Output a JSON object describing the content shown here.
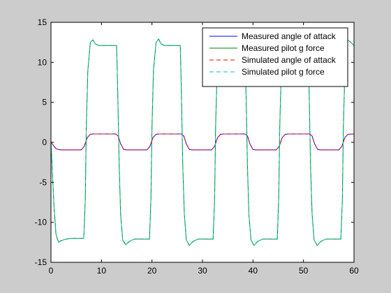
{
  "chart_data": {
    "type": "line",
    "title": "",
    "xlabel": "",
    "ylabel": "",
    "xlim": [
      0,
      60
    ],
    "ylim": [
      -15,
      15
    ],
    "xticks": [
      0,
      10,
      20,
      30,
      40,
      50,
      60
    ],
    "yticks": [
      -15,
      -10,
      -5,
      0,
      5,
      10,
      15
    ],
    "xtick_labels": [
      "0",
      "10",
      "20",
      "30",
      "40",
      "50",
      "60"
    ],
    "ytick_labels": [
      "-15",
      "-10",
      "-5",
      "0",
      "5",
      "10",
      "15"
    ],
    "grid": false,
    "legend_position": "top-right",
    "series": [
      {
        "name": "Measured angle of attack",
        "color": "#0000ff",
        "dash": "solid",
        "x": [
          0,
          0.5,
          1,
          1.5,
          2,
          6,
          6.6,
          7.2,
          7.8,
          8.3,
          12.8,
          13.3,
          13.8,
          14.4,
          15,
          19,
          19.6,
          20.2,
          20.8,
          21.4,
          25.8,
          26.3,
          26.8,
          27.4,
          28,
          31.8,
          32.4,
          33,
          33.6,
          34.2,
          38.4,
          38.9,
          39.4,
          40,
          40.6,
          44.6,
          45.2,
          45.8,
          46.4,
          47,
          51.2,
          51.7,
          52.2,
          52.8,
          53.4,
          57,
          57.6,
          58.2,
          58.8,
          60
        ],
        "y": [
          0,
          -0.4,
          -0.8,
          -0.9,
          -0.95,
          -0.95,
          -0.5,
          0.6,
          1.0,
          1.05,
          1.05,
          0.8,
          -0.2,
          -0.9,
          -0.95,
          -0.95,
          -0.5,
          0.6,
          1.0,
          1.05,
          1.05,
          0.8,
          -0.2,
          -0.9,
          -0.95,
          -0.95,
          -0.5,
          0.6,
          1.0,
          1.05,
          1.05,
          0.8,
          -0.2,
          -0.9,
          -0.95,
          -0.95,
          -0.5,
          0.6,
          1.0,
          1.05,
          1.05,
          0.8,
          -0.2,
          -0.9,
          -0.95,
          -0.95,
          -0.5,
          0.6,
          1.0,
          1.05
        ]
      },
      {
        "name": "Measured pilot g force",
        "color": "#008000",
        "dash": "solid",
        "x": [
          0,
          0.3,
          0.6,
          1,
          1.5,
          2,
          3,
          4,
          6.5,
          6.8,
          7.0,
          7.3,
          7.8,
          8.3,
          8.8,
          9.5,
          10.5,
          13.0,
          13.2,
          13.5,
          13.8,
          14.2,
          14.8,
          15.5,
          16.5,
          19.5,
          19.8,
          20.0,
          20.3,
          20.8,
          21.3,
          21.8,
          22.5,
          23.5,
          25.6,
          25.8,
          26.1,
          26.4,
          26.8,
          27.4,
          28.1,
          29.1,
          32.1,
          32.4,
          32.6,
          32.9,
          33.4,
          33.9,
          34.4,
          35.1,
          36.1,
          38.4,
          38.6,
          38.9,
          39.2,
          39.6,
          40.2,
          40.9,
          41.9,
          44.8,
          45.1,
          45.3,
          45.6,
          46.1,
          46.6,
          47.1,
          47.8,
          48.8,
          50.9,
          51.1,
          51.4,
          51.7,
          52.1,
          52.7,
          53.4,
          54.4,
          57.4,
          57.7,
          57.9,
          58.2,
          58.7,
          59.2,
          60
        ],
        "y": [
          0,
          -4,
          -8,
          -11.5,
          -12.5,
          -12.3,
          -12.1,
          -12.0,
          -12.0,
          -7,
          2,
          9,
          12.5,
          12.8,
          12.3,
          12.1,
          12.1,
          12.1,
          7,
          -3,
          -9,
          -12.2,
          -12.8,
          -12.4,
          -12.1,
          -12.1,
          -7,
          2,
          9,
          12.5,
          12.9,
          12.3,
          12.1,
          12.1,
          12.1,
          7,
          -3,
          -9,
          -12.2,
          -12.9,
          -12.4,
          -12.1,
          -12.1,
          -7,
          2,
          9,
          12.5,
          12.9,
          12.3,
          12.1,
          12.1,
          12.1,
          7,
          -3,
          -9,
          -12.2,
          -12.9,
          -12.4,
          -12.1,
          -12.1,
          -7,
          2,
          9,
          12.5,
          12.9,
          12.3,
          12.1,
          12.1,
          12.1,
          7,
          -3,
          -9,
          -12.2,
          -12.9,
          -12.4,
          -12.1,
          -12.1,
          -7,
          2,
          9,
          12.8,
          12.6,
          12.1
        ]
      },
      {
        "name": "Simulated angle of attack",
        "color": "#ff0000",
        "dash": "dashed",
        "x": [
          0,
          0.5,
          1,
          1.5,
          2,
          6,
          6.6,
          7.2,
          7.8,
          8.3,
          12.8,
          13.3,
          13.8,
          14.4,
          15,
          19,
          19.6,
          20.2,
          20.8,
          21.4,
          25.8,
          26.3,
          26.8,
          27.4,
          28,
          31.8,
          32.4,
          33,
          33.6,
          34.2,
          38.4,
          38.9,
          39.4,
          40,
          40.6,
          44.6,
          45.2,
          45.8,
          46.4,
          47,
          51.2,
          51.7,
          52.2,
          52.8,
          53.4,
          57,
          57.6,
          58.2,
          58.8,
          60
        ],
        "y": [
          0,
          -0.4,
          -0.8,
          -0.9,
          -0.95,
          -0.95,
          -0.5,
          0.6,
          1.0,
          1.05,
          1.05,
          0.8,
          -0.2,
          -0.9,
          -0.95,
          -0.95,
          -0.5,
          0.6,
          1.0,
          1.05,
          1.05,
          0.8,
          -0.2,
          -0.9,
          -0.95,
          -0.95,
          -0.5,
          0.6,
          1.0,
          1.05,
          1.05,
          0.8,
          -0.2,
          -0.9,
          -0.95,
          -0.95,
          -0.5,
          0.6,
          1.0,
          1.05,
          1.05,
          0.8,
          -0.2,
          -0.9,
          -0.95,
          -0.95,
          -0.5,
          0.6,
          1.0,
          1.05
        ]
      },
      {
        "name": "Simulated pilot g force",
        "color": "#00bfbf",
        "dash": "dashed",
        "x": [
          0,
          0.3,
          0.6,
          1,
          1.5,
          2,
          3,
          4,
          6.5,
          6.8,
          7.0,
          7.3,
          7.8,
          8.3,
          8.8,
          9.5,
          10.5,
          13.0,
          13.2,
          13.5,
          13.8,
          14.2,
          14.8,
          15.5,
          16.5,
          19.5,
          19.8,
          20.0,
          20.3,
          20.8,
          21.3,
          21.8,
          22.5,
          23.5,
          25.6,
          25.8,
          26.1,
          26.4,
          26.8,
          27.4,
          28.1,
          29.1,
          32.1,
          32.4,
          32.6,
          32.9,
          33.4,
          33.9,
          34.4,
          35.1,
          36.1,
          38.4,
          38.6,
          38.9,
          39.2,
          39.6,
          40.2,
          40.9,
          41.9,
          44.8,
          45.1,
          45.3,
          45.6,
          46.1,
          46.6,
          47.1,
          47.8,
          48.8,
          50.9,
          51.1,
          51.4,
          51.7,
          52.1,
          52.7,
          53.4,
          54.4,
          57.4,
          57.7,
          57.9,
          58.2,
          58.7,
          59.2,
          60
        ],
        "y": [
          0,
          -4,
          -8,
          -11.5,
          -12.5,
          -12.3,
          -12.1,
          -12.0,
          -12.0,
          -7,
          2,
          9,
          12.5,
          12.8,
          12.3,
          12.1,
          12.1,
          12.1,
          7,
          -3,
          -9,
          -12.2,
          -12.8,
          -12.4,
          -12.1,
          -12.1,
          -7,
          2,
          9,
          12.5,
          12.9,
          12.3,
          12.1,
          12.1,
          12.1,
          7,
          -3,
          -9,
          -12.2,
          -12.9,
          -12.4,
          -12.1,
          -12.1,
          -7,
          2,
          9,
          12.5,
          12.9,
          12.3,
          12.1,
          12.1,
          12.1,
          7,
          -3,
          -9,
          -12.2,
          -12.9,
          -12.4,
          -12.1,
          -12.1,
          -7,
          2,
          9,
          12.5,
          12.9,
          12.3,
          12.1,
          12.1,
          12.1,
          7,
          -3,
          -9,
          -12.2,
          -12.9,
          -12.4,
          -12.1,
          -12.1,
          -7,
          2,
          9,
          12.8,
          12.6,
          12.1
        ]
      }
    ]
  }
}
